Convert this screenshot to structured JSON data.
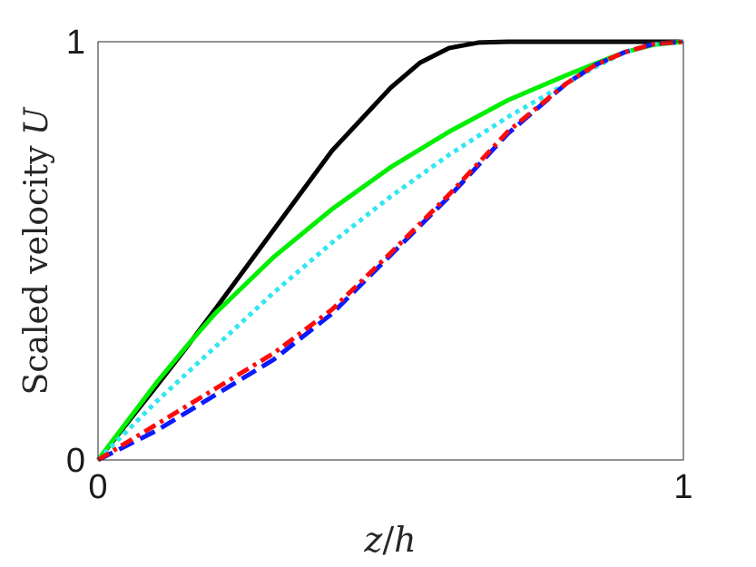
{
  "chart_data": {
    "type": "line",
    "title": "",
    "xlabel": {
      "var1": "z",
      "sep": "/",
      "var2": "h"
    },
    "ylabel": {
      "text": "Scaled velocity ",
      "var": "U"
    },
    "xlim": [
      0,
      1
    ],
    "ylim": [
      0,
      1
    ],
    "xticks": [
      0,
      1
    ],
    "yticks": [
      0,
      1
    ],
    "xtick_labels": [
      "0",
      "1"
    ],
    "ytick_labels": [
      "0",
      "1"
    ],
    "grid": false,
    "legend": "none",
    "series": [
      {
        "color": "#000000",
        "style": "solid",
        "x": [
          0,
          0.1,
          0.15,
          0.2,
          0.3,
          0.4,
          0.5,
          0.55,
          0.6,
          0.65,
          0.7,
          0.75,
          0.8,
          0.9,
          1.0
        ],
        "y": [
          0,
          0.177,
          0.267,
          0.36,
          0.55,
          0.74,
          0.89,
          0.95,
          0.985,
          0.998,
          1.0,
          1.0,
          1.0,
          1.0,
          1.0
        ]
      },
      {
        "color": "#00ee00",
        "style": "solid",
        "x": [
          0,
          0.1,
          0.15,
          0.2,
          0.3,
          0.4,
          0.5,
          0.6,
          0.7,
          0.8,
          0.85,
          0.9,
          0.95,
          1.0
        ],
        "y": [
          0,
          0.185,
          0.27,
          0.35,
          0.485,
          0.6,
          0.7,
          0.785,
          0.86,
          0.92,
          0.948,
          0.975,
          0.993,
          1.0
        ]
      },
      {
        "color": "#33e6f0",
        "style": "dotted",
        "x": [
          0,
          0.1,
          0.2,
          0.3,
          0.4,
          0.5,
          0.6,
          0.7,
          0.8,
          0.85,
          0.9,
          0.95,
          1.0
        ],
        "y": [
          0,
          0.14,
          0.27,
          0.4,
          0.52,
          0.63,
          0.73,
          0.82,
          0.9,
          0.94,
          0.975,
          0.995,
          1.0
        ]
      },
      {
        "color": "#0a1aff",
        "style": "dashed",
        "x": [
          0,
          0.1,
          0.2,
          0.3,
          0.4,
          0.5,
          0.6,
          0.7,
          0.8,
          0.85,
          0.9,
          0.95,
          1.0
        ],
        "y": [
          0,
          0.07,
          0.155,
          0.24,
          0.35,
          0.49,
          0.63,
          0.78,
          0.9,
          0.945,
          0.975,
          0.995,
          1.0
        ]
      },
      {
        "color": "#ff0a0a",
        "style": "dashdot",
        "x": [
          0,
          0.1,
          0.2,
          0.3,
          0.4,
          0.5,
          0.6,
          0.7,
          0.8,
          0.85,
          0.9,
          0.95,
          1.0
        ],
        "y": [
          0,
          0.085,
          0.17,
          0.255,
          0.36,
          0.495,
          0.635,
          0.785,
          0.9,
          0.945,
          0.975,
          0.995,
          1.0
        ]
      }
    ]
  }
}
